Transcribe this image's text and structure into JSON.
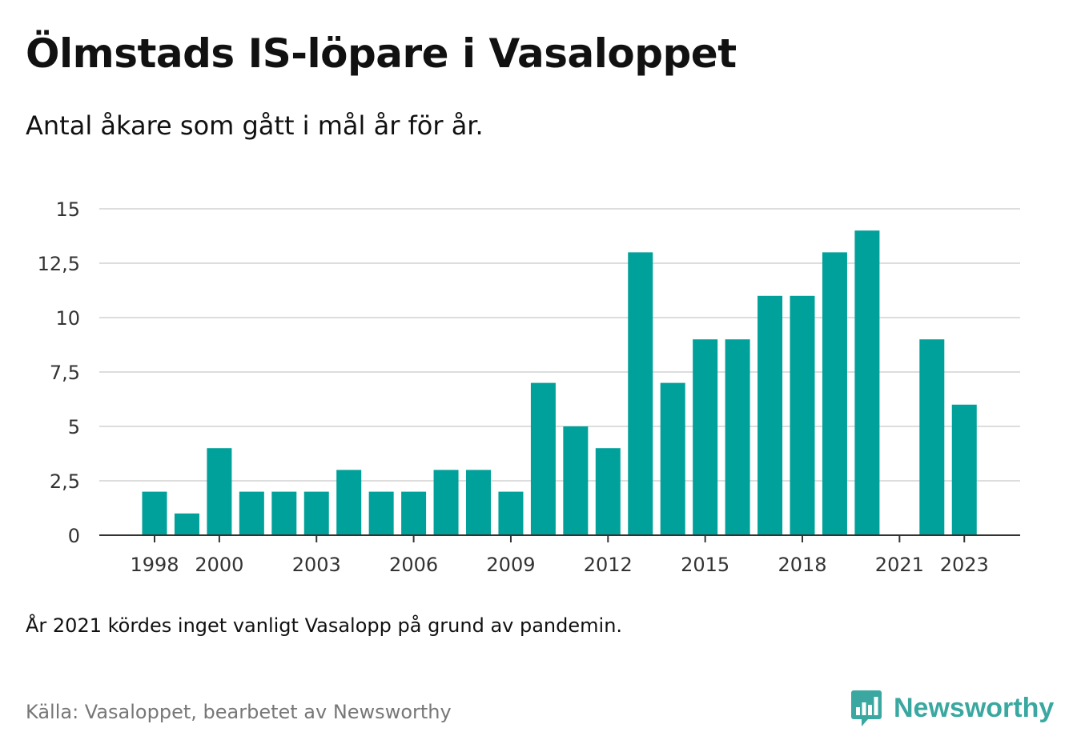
{
  "title": "Ölmstads IS-löpare i Vasaloppet",
  "subtitle": "Antal åkare som gått i mål år för år.",
  "note": "År 2021 kördes inget vanligt Vasalopp på grund av pandemin.",
  "source": "Källa: Vasaloppet, bearbetet av Newsworthy",
  "brand": {
    "name": "Newsworthy",
    "icon": "newsworthy-logo-icon",
    "color": "#3aa8a0"
  },
  "chart_data": {
    "type": "bar",
    "x": [
      1998,
      1999,
      2000,
      2001,
      2002,
      2003,
      2004,
      2005,
      2006,
      2007,
      2008,
      2009,
      2010,
      2011,
      2012,
      2013,
      2014,
      2015,
      2016,
      2017,
      2018,
      2019,
      2020,
      2021,
      2022,
      2023
    ],
    "values": [
      2,
      1,
      4,
      2,
      2,
      2,
      3,
      2,
      2,
      3,
      3,
      2,
      7,
      5,
      4,
      13,
      7,
      9,
      9,
      11,
      11,
      13,
      14,
      0,
      9,
      6
    ],
    "x_tick_labels": [
      "1998",
      "2000",
      "2003",
      "2006",
      "2009",
      "2012",
      "2015",
      "2018",
      "2021",
      "2023"
    ],
    "y_ticks": [
      0,
      2.5,
      5,
      7.5,
      10,
      12.5,
      15
    ],
    "y_tick_labels": [
      "0",
      "2,5",
      "5",
      "7,5",
      "10",
      "12,5",
      "15"
    ],
    "ylim": [
      0,
      15
    ],
    "bar_color": "#00a19a",
    "grid": true,
    "legend": "none"
  }
}
